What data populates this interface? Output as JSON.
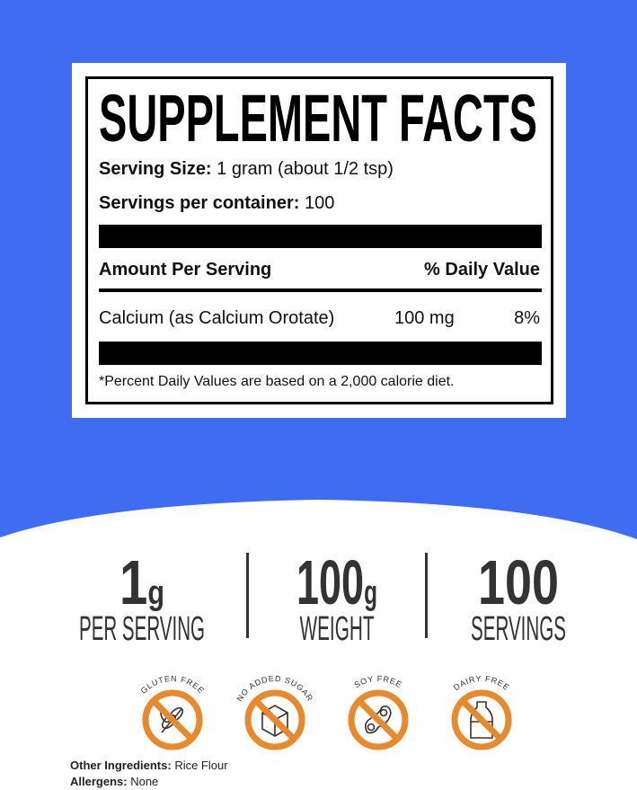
{
  "colors": {
    "background_blue": "#3f6df2",
    "badge_orange": "#e8892b"
  },
  "facts": {
    "title": "SUPPLEMENT FACTS",
    "serving_size_label": "Serving Size:",
    "serving_size_value": "1 gram (about 1/2 tsp)",
    "servings_label": "Servings per container:",
    "servings_value": "100",
    "amount_header": "Amount Per Serving",
    "dv_header": "% Daily Value",
    "ingredient": "Calcium (as Calcium Orotate)",
    "amount": "100 mg",
    "dv": "8%",
    "footnote": "*Percent Daily Values are based on a 2,000 calorie diet."
  },
  "stats": [
    {
      "value": "1",
      "unit": "g",
      "label": "PER SERVING"
    },
    {
      "value": "100",
      "unit": "g",
      "label": "WEIGHT"
    },
    {
      "value": "100",
      "unit": "",
      "label": "SERVINGS"
    }
  ],
  "badges": [
    {
      "text": "GLUTEN FREE",
      "icon": "wheat-icon"
    },
    {
      "text": "NO ADDED SUGAR",
      "icon": "sugar-cube-icon"
    },
    {
      "text": "SOY FREE",
      "icon": "soybean-icon"
    },
    {
      "text": "DAIRY FREE",
      "icon": "milk-bottle-icon"
    }
  ],
  "footer": {
    "ingredients_label": "Other Ingredients:",
    "ingredients_value": "Rice Flour",
    "allergens_label": "Allergens:",
    "allergens_value": "None"
  }
}
